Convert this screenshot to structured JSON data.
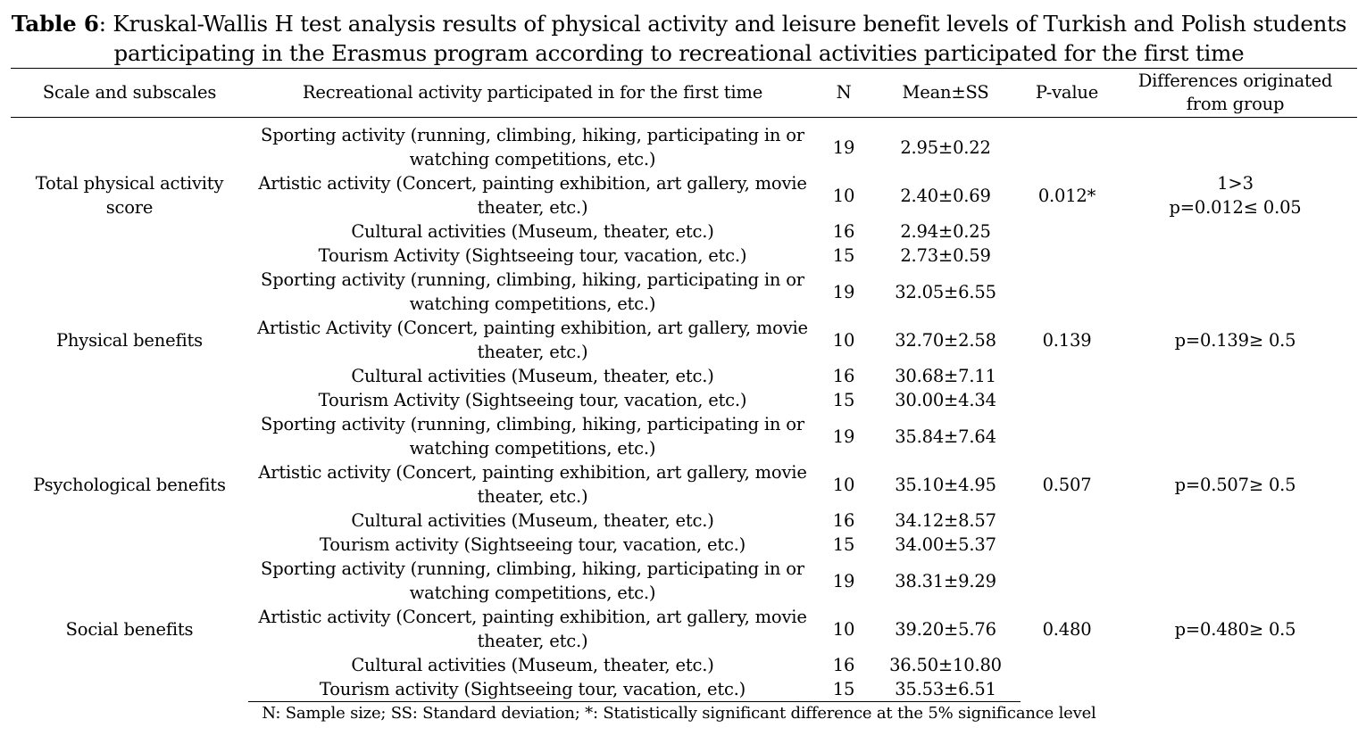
{
  "caption": {
    "label": "Table 6",
    "text": ": Kruskal-Wallis H test analysis results of physical activity and leisure benefit levels of Turkish and Polish students participating in the Erasmus program according to recreational activities participated for the first time"
  },
  "table": {
    "headers": {
      "scale": "Scale and subscales",
      "activity": "Recreational activity participated in for the first time",
      "n": "N",
      "mean": "Mean±SS",
      "p": "P-value",
      "diff": "Differences originated from group"
    },
    "groups": [
      {
        "scale": "Total physical activity score",
        "p": "0.012*",
        "diff": "1>3\np=0.012≤ 0.05",
        "rows": [
          {
            "activity": "Sporting activity (running, climbing, hiking, participating in or watching competitions, etc.)",
            "n": "19",
            "mean": "2.95±0.22"
          },
          {
            "activity": "Artistic activity (Concert, painting exhibition, art gallery, movie theater, etc.)",
            "n": "10",
            "mean": "2.40±0.69"
          },
          {
            "activity": "Cultural activities (Museum, theater, etc.)",
            "n": "16",
            "mean": "2.94±0.25"
          },
          {
            "activity": "Tourism Activity (Sightseeing tour, vacation, etc.)",
            "n": "15",
            "mean": "2.73±0.59"
          }
        ]
      },
      {
        "scale": "Physical benefits",
        "p": "0.139",
        "diff": "p=0.139≥ 0.5",
        "rows": [
          {
            "activity": "Sporting activity (running, climbing, hiking, participating in or watching competitions, etc.)",
            "n": "19",
            "mean": "32.05±6.55"
          },
          {
            "activity": "Artistic Activity (Concert, painting exhibition, art gallery, movie theater, etc.)",
            "n": "10",
            "mean": "32.70±2.58"
          },
          {
            "activity": "Cultural activities (Museum, theater, etc.)",
            "n": "16",
            "mean": "30.68±7.11"
          },
          {
            "activity": "Tourism Activity (Sightseeing tour, vacation, etc.)",
            "n": "15",
            "mean": "30.00±4.34"
          }
        ]
      },
      {
        "scale": "Psychological benefits",
        "p": "0.507",
        "diff": "p=0.507≥ 0.5",
        "rows": [
          {
            "activity": "Sporting activity (running, climbing, hiking, participating in or watching competitions, etc.)",
            "n": "19",
            "mean": "35.84±7.64"
          },
          {
            "activity": "Artistic activity (Concert, painting exhibition, art gallery, movie theater, etc.)",
            "n": "10",
            "mean": "35.10±4.95"
          },
          {
            "activity": "Cultural activities (Museum, theater, etc.)",
            "n": "16",
            "mean": "34.12±8.57"
          },
          {
            "activity": "Tourism activity (Sightseeing tour, vacation, etc.)",
            "n": "15",
            "mean": "34.00±5.37"
          }
        ]
      },
      {
        "scale": "Social benefits",
        "p": "0.480",
        "diff": "p=0.480≥ 0.5",
        "rows": [
          {
            "activity": "Sporting activity (running, climbing, hiking, participating in or watching competitions, etc.)",
            "n": "19",
            "mean": "38.31±9.29"
          },
          {
            "activity": "Artistic activity (Concert, painting exhibition, art gallery, movie theater, etc.)",
            "n": "10",
            "mean": "39.20±5.76"
          },
          {
            "activity": "Cultural activities (Museum, theater, etc.)",
            "n": "16",
            "mean": "36.50±10.80"
          },
          {
            "activity": "Tourism activity (Sightseeing tour, vacation, etc.)",
            "n": "15",
            "mean": "35.53±6.51"
          }
        ]
      }
    ]
  },
  "footnote": "N: Sample size; SS: Standard deviation; *: Statistically significant difference at the 5% significance level"
}
